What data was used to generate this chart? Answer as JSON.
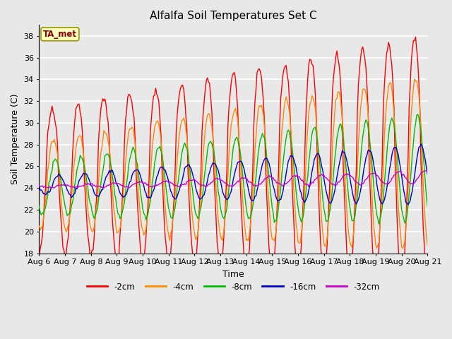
{
  "title": "Alfalfa Soil Temperatures Set C",
  "xlabel": "Time",
  "ylabel": "Soil Temperature (C)",
  "ylim": [
    18,
    39
  ],
  "xlim": [
    0,
    360
  ],
  "annotation": "TA_met",
  "series_colors": {
    "-2cm": "#FF0000",
    "-4cm": "#FF8800",
    "-8cm": "#00BB00",
    "-16cm": "#0000CC",
    "-32cm": "#CC00CC"
  },
  "series_labels": [
    "-2cm",
    "-4cm",
    "-8cm",
    "-16cm",
    "-32cm"
  ],
  "plot_bg_color": "#E8E8E8",
  "fig_bg_color": "#E8E8E8",
  "grid_color": "#FFFFFF",
  "yticks": [
    18,
    20,
    22,
    24,
    26,
    28,
    30,
    32,
    34,
    36,
    38
  ],
  "tick_labels": [
    "Aug 6",
    "Aug 7",
    "Aug 8",
    "Aug 9",
    "Aug 10",
    "Aug 11",
    "Aug 12",
    "Aug 13",
    "Aug 14",
    "Aug 15",
    "Aug 16",
    "Aug 17",
    "Aug 18",
    "Aug 19",
    "Aug 20",
    "Aug 21"
  ],
  "tick_positions": [
    0,
    24,
    48,
    72,
    96,
    120,
    144,
    168,
    192,
    216,
    240,
    264,
    288,
    312,
    336,
    360
  ]
}
